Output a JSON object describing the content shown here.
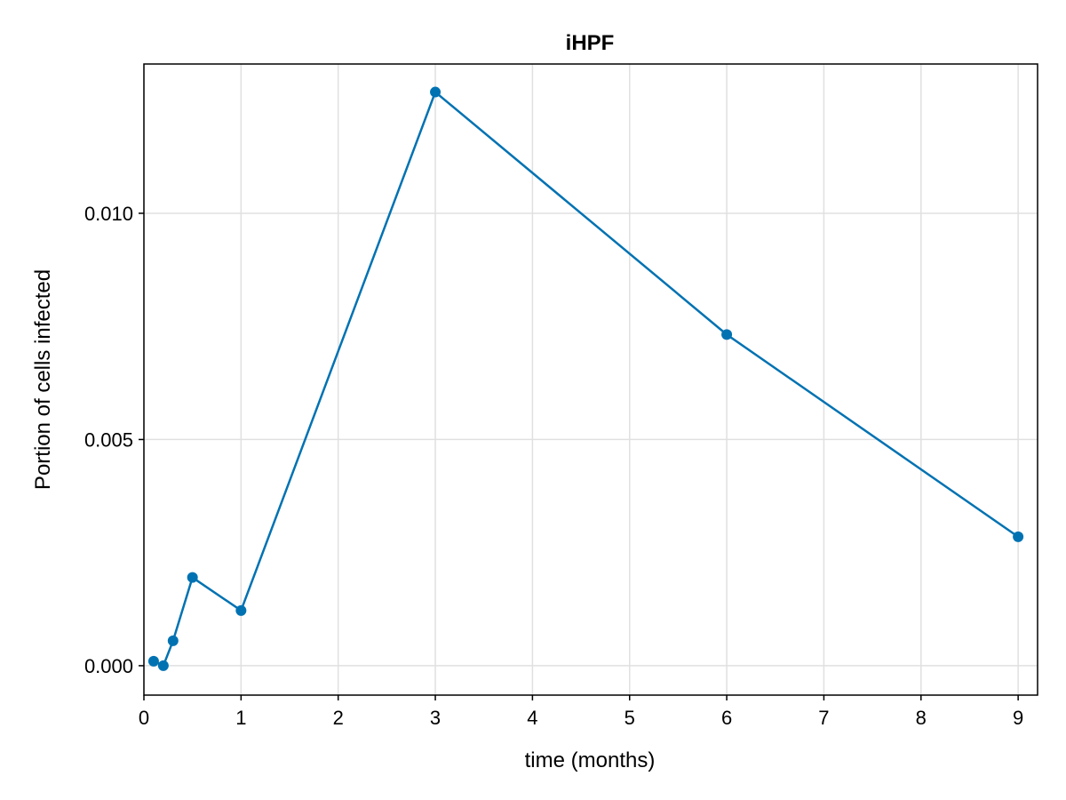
{
  "chart_data": {
    "type": "line",
    "title": "iHPF",
    "xlabel": "time (months)",
    "ylabel": "Portion of cells infected",
    "xlim": [
      0,
      9.2
    ],
    "ylim": [
      -0.00065,
      0.0133
    ],
    "xticks": [
      0,
      1,
      2,
      3,
      4,
      5,
      6,
      7,
      8,
      9
    ],
    "xtick_labels": [
      "0",
      "1",
      "2",
      "3",
      "4",
      "5",
      "6",
      "7",
      "8",
      "9"
    ],
    "yticks": [
      0,
      0.005,
      0.01
    ],
    "ytick_labels": [
      "0.000",
      "0.005",
      "0.010"
    ],
    "grid": true,
    "series": [
      {
        "color": "#0072b2",
        "x": [
          0.1,
          0.2,
          0.3,
          0.5,
          1,
          3,
          6,
          9
        ],
        "y": [
          0.0001,
          0.0,
          0.00055,
          0.00195,
          0.00122,
          0.01268,
          0.00732,
          0.00285
        ]
      }
    ]
  }
}
